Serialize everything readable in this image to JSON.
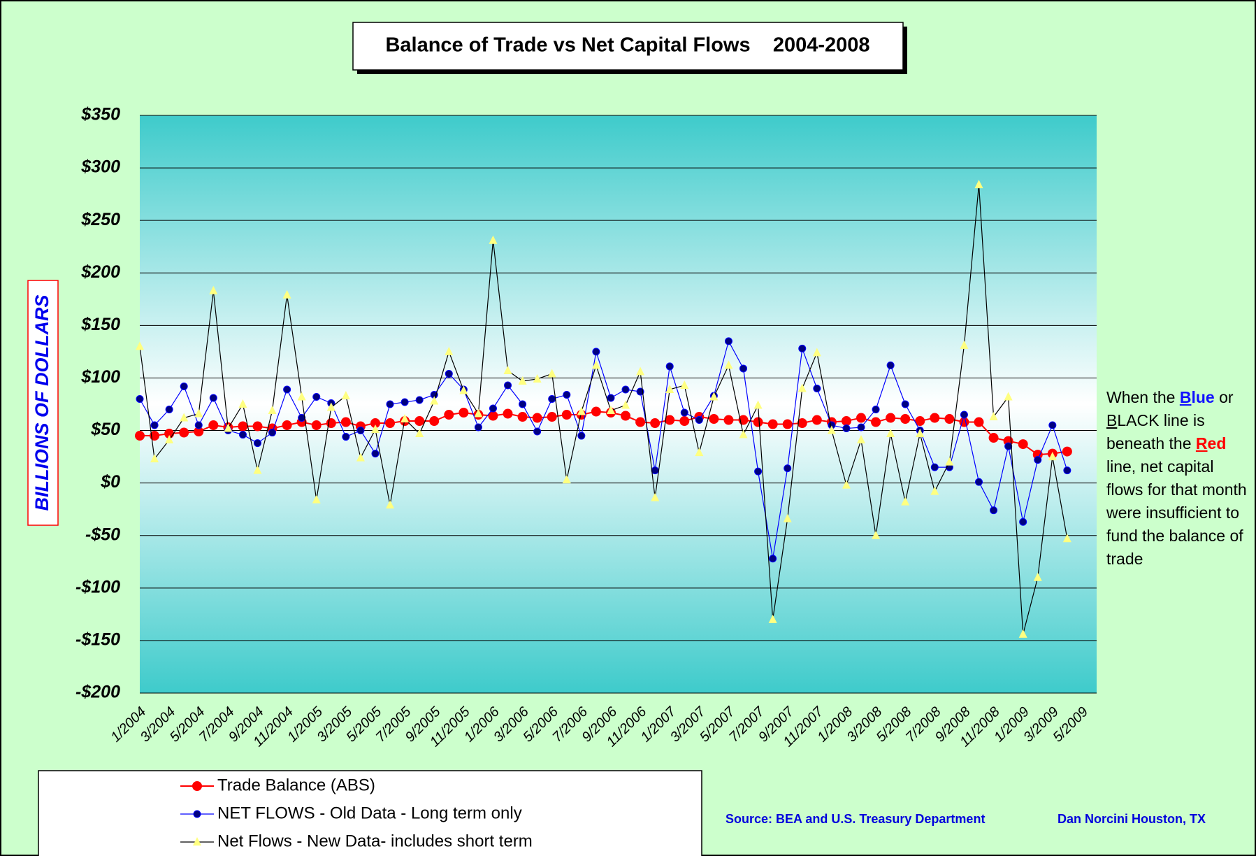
{
  "chart_data": {
    "type": "line",
    "title": "Balance of Trade vs Net Capital Flows    2004-2008",
    "y_label": "BILLIONS OF DOLLARS",
    "categories": [
      "1/2004",
      null,
      "3/2004",
      null,
      "5/2004",
      null,
      "7/2004",
      null,
      "9/2004",
      null,
      "11/2004",
      null,
      "1/2005",
      null,
      "3/2005",
      null,
      "5/2005",
      null,
      "7/2005",
      null,
      "9/2005",
      null,
      "11/2005",
      null,
      "1/2006",
      null,
      "3/2006",
      null,
      "5/2006",
      null,
      "7/2006",
      null,
      "9/2006",
      null,
      "11/2006",
      null,
      "1/2007",
      null,
      "3/2007",
      null,
      "5/2007",
      null,
      "7/2007",
      null,
      "9/2007",
      null,
      "11/2007",
      null,
      "1/2008",
      null,
      "3/2008",
      null,
      "5/2008",
      null,
      "7/2008",
      null,
      "9/2008",
      null,
      "11/2008",
      null,
      "1/2009",
      null,
      "3/2009",
      null,
      "5/2009"
    ],
    "series": [
      {
        "name": "Trade Balance (ABS)",
        "color": "#ff0000",
        "marker": "circle",
        "marker_color": "#ff0000",
        "values": [
          45,
          45,
          47,
          48,
          49,
          55,
          53,
          54,
          54,
          52,
          55,
          58,
          55,
          57,
          58,
          54,
          57,
          57,
          59,
          59,
          59,
          65,
          67,
          65,
          64,
          66,
          63,
          62,
          63,
          65,
          65,
          68,
          67,
          64,
          58,
          57,
          60,
          59,
          63,
          61,
          60,
          60,
          58,
          56,
          56,
          57,
          60,
          58,
          59,
          62,
          58,
          62,
          61,
          59,
          62,
          61,
          58,
          58,
          43,
          40,
          37,
          27,
          28,
          30,
          null
        ]
      },
      {
        "name": "NET FLOWS - Old Data - Long term only",
        "color": "#0000ff",
        "marker": "circle",
        "marker_color": "#000080",
        "values": [
          80,
          55,
          70,
          92,
          55,
          81,
          50,
          46,
          38,
          48,
          89,
          62,
          82,
          76,
          44,
          50,
          28,
          75,
          77,
          79,
          84,
          104,
          89,
          53,
          71,
          93,
          75,
          49,
          80,
          84,
          45,
          125,
          81,
          89,
          87,
          12,
          111,
          67,
          60,
          83,
          135,
          109,
          11,
          -72,
          14,
          128,
          90,
          55,
          52,
          53,
          70,
          112,
          75,
          50,
          15,
          15,
          65,
          1,
          -26,
          35,
          -37,
          22,
          55,
          12,
          null
        ]
      },
      {
        "name": "Net Flows - New Data- includes short term",
        "color": "#000000",
        "marker": "triangle",
        "marker_color": "#ffff80",
        "values": [
          130,
          23,
          41,
          62,
          66,
          183,
          52,
          75,
          12,
          69,
          179,
          82,
          -16,
          72,
          83,
          24,
          51,
          -21,
          61,
          47,
          78,
          125,
          88,
          66,
          231,
          107,
          97,
          99,
          104,
          3,
          68,
          112,
          69,
          74,
          106,
          -14,
          89,
          93,
          29,
          82,
          112,
          46,
          74,
          -130,
          -34,
          90,
          124,
          50,
          -2,
          41,
          -50,
          47,
          -18,
          47,
          -8,
          20,
          131,
          284,
          63,
          82,
          -144,
          -90,
          25,
          -53,
          null
        ]
      }
    ],
    "ylim": [
      -200,
      350
    ],
    "yticks": [
      {
        "value": -200,
        "label": "-$200"
      },
      {
        "value": -150,
        "label": "-$150"
      },
      {
        "value": -100,
        "label": "-$100"
      },
      {
        "value": -50,
        "label": "-$50"
      },
      {
        "value": 0,
        "label": "$0"
      },
      {
        "value": 50,
        "label": "$50"
      },
      {
        "value": 100,
        "label": "$100"
      },
      {
        "value": 150,
        "label": "$150"
      },
      {
        "value": 200,
        "label": "$200"
      },
      {
        "value": 250,
        "label": "$250"
      },
      {
        "value": 300,
        "label": "$300"
      },
      {
        "value": 350,
        "label": "$350"
      }
    ],
    "grid": true,
    "annotation": [
      "When the ",
      "Blue",
      " or ",
      "BLACK",
      " line is beneath the ",
      "Red",
      " line, net capital flows for that month were insufficient to fund the balance of trade"
    ],
    "source": "Source:  BEA and U.S. Treasury Department",
    "author": "Dan Norcini  Houston, TX"
  }
}
